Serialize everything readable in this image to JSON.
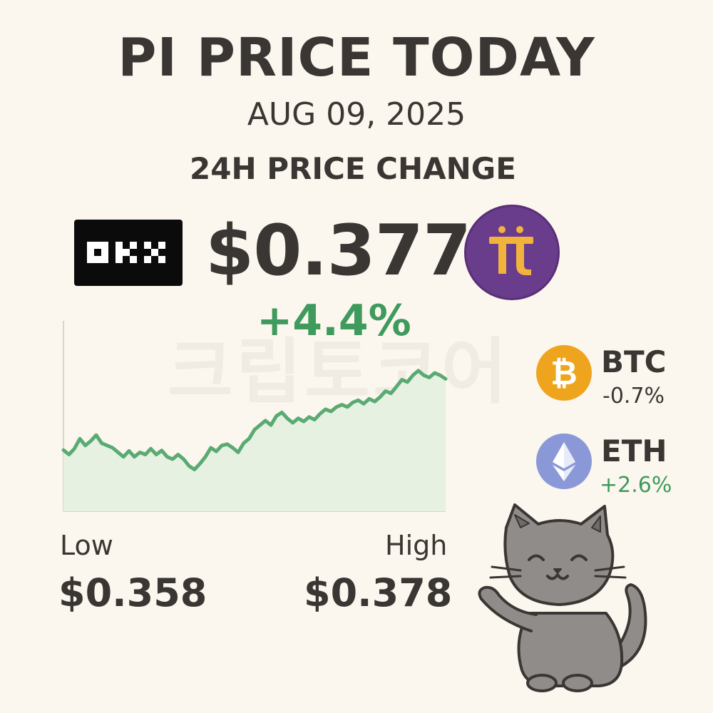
{
  "header": {
    "title": "PI PRICE TODAY",
    "date": "AUG 09, 2025",
    "change_label": "24H PRICE CHANGE"
  },
  "price": {
    "current": "$0.377",
    "change_pct": "+4.4%"
  },
  "exchange_logo": {
    "text": "OKX",
    "icon": "okx-logo"
  },
  "coin_logo": {
    "icon": "pi-network-logo",
    "color": "#6a3d8c",
    "glyph_color": "#f2b33d"
  },
  "watermark": "크립토코어",
  "range": {
    "low_label": "Low",
    "low_value": "$0.358",
    "high_label": "High",
    "high_value": "$0.378"
  },
  "others": [
    {
      "symbol": "BTC",
      "change": "-0.7%",
      "icon": "bitcoin-logo",
      "color": "#efa41e"
    },
    {
      "symbol": "ETH",
      "change": "+2.6%",
      "icon": "ethereum-logo",
      "color": "#8a98d8"
    }
  ],
  "colors": {
    "up": "#3f9a5d",
    "line": "#5aaa73",
    "fill": "#e6f1e2",
    "text": "#3a3633"
  },
  "mascot": {
    "icon": "waving-cat-icon"
  },
  "chart_data": {
    "type": "area",
    "title": "",
    "xlabel": "",
    "ylabel": "",
    "grid": false,
    "legend": "none",
    "x": [
      0,
      1,
      2,
      3,
      4,
      5,
      6,
      7,
      8,
      9,
      10,
      11,
      12,
      13,
      14,
      15,
      16,
      17,
      18,
      19,
      20,
      21,
      22,
      23,
      24,
      25,
      26,
      27,
      28,
      29,
      30,
      31,
      32,
      33,
      34,
      35,
      36,
      37,
      38,
      39,
      40,
      41,
      42,
      43,
      44,
      45,
      46,
      47,
      48,
      49,
      50,
      51,
      52,
      53,
      54,
      55,
      56,
      57,
      58,
      59,
      60,
      61,
      62,
      63,
      64,
      65,
      66,
      67,
      68,
      69,
      70
    ],
    "series": [
      {
        "values": [
          0.3635,
          0.3625,
          0.3638,
          0.366,
          0.3645,
          0.3655,
          0.3668,
          0.365,
          0.3645,
          0.364,
          0.363,
          0.362,
          0.3633,
          0.362,
          0.363,
          0.3625,
          0.3638,
          0.3625,
          0.3634,
          0.362,
          0.3615,
          0.3625,
          0.3615,
          0.36,
          0.3592,
          0.3605,
          0.362,
          0.364,
          0.3632,
          0.3645,
          0.3648,
          0.364,
          0.363,
          0.365,
          0.366,
          0.368,
          0.369,
          0.37,
          0.369,
          0.371,
          0.3718,
          0.3705,
          0.3695,
          0.3705,
          0.3698,
          0.3708,
          0.3702,
          0.3715,
          0.3725,
          0.372,
          0.373,
          0.3735,
          0.373,
          0.374,
          0.3745,
          0.3737,
          0.3748,
          0.3742,
          0.3752,
          0.3765,
          0.376,
          0.3775,
          0.379,
          0.3785,
          0.38,
          0.381,
          0.38,
          0.3795,
          0.3805,
          0.38,
          0.3792
        ]
      }
    ],
    "ylim": [
      0.35,
      0.392
    ],
    "low": 0.358,
    "high": 0.378
  }
}
